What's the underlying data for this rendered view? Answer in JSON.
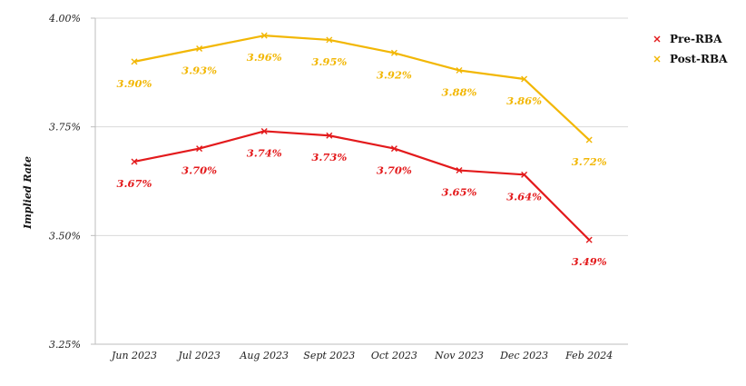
{
  "chart_data": {
    "type": "line",
    "title": "",
    "xlabel": "",
    "ylabel": "Implied Rate",
    "ylim": [
      3.25,
      4.0
    ],
    "yticks": [
      {
        "value": 3.25,
        "label": "3.25%"
      },
      {
        "value": 3.5,
        "label": "3.50%"
      },
      {
        "value": 3.75,
        "label": "3.75%"
      },
      {
        "value": 4.0,
        "label": "4.00%"
      }
    ],
    "grid": true,
    "legend_position": "top-right",
    "categories": [
      "Jun 2023",
      "Jul 2023",
      "Aug 2023",
      "Sept 2023",
      "Oct 2023",
      "Nov 2023",
      "Dec 2023",
      "Feb 2024"
    ],
    "series": [
      {
        "name": "Pre-RBA",
        "color": "#e31a1c",
        "values": [
          3.67,
          3.7,
          3.74,
          3.73,
          3.7,
          3.65,
          3.64,
          3.49
        ],
        "labels": [
          "3.67%",
          "3.70%",
          "3.74%",
          "3.73%",
          "3.70%",
          "3.65%",
          "3.64%",
          "3.49%"
        ]
      },
      {
        "name": "Post-RBA",
        "color": "#f2b705",
        "values": [
          3.9,
          3.93,
          3.96,
          3.95,
          3.92,
          3.88,
          3.86,
          3.72
        ],
        "labels": [
          "3.90%",
          "3.93%",
          "3.96%",
          "3.95%",
          "3.92%",
          "3.88%",
          "3.86%",
          "3.72%"
        ]
      }
    ]
  }
}
